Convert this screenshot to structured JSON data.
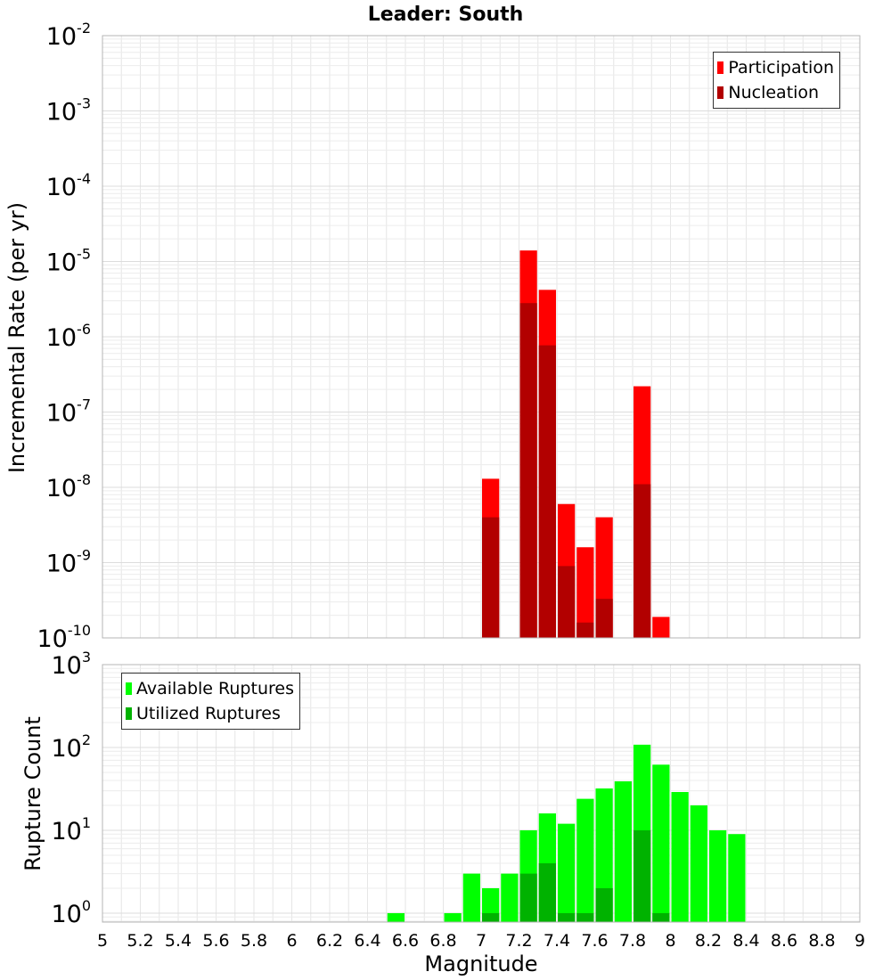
{
  "chart_data": [
    {
      "type": "bar",
      "title": "Leader: South",
      "xlabel": "",
      "ylabel": "Incremental Rate (per yr)",
      "yscale": "log",
      "ylim": [
        1e-10,
        0.01
      ],
      "xlim": [
        5,
        9
      ],
      "grid": true,
      "legend_position": "top-right",
      "bar_width": 0.1,
      "x": [
        7.05,
        7.25,
        7.35,
        7.45,
        7.55,
        7.65,
        7.85,
        7.95
      ],
      "series": [
        {
          "name": "Participation",
          "color": "#ff0000",
          "values": [
            1.3e-08,
            1.4e-05,
            4.2e-06,
            6e-09,
            1.6e-09,
            4e-09,
            2.2e-07,
            1.9e-10
          ]
        },
        {
          "name": "Nucleation",
          "color": "#b20000",
          "values": [
            4e-09,
            2.8e-06,
            7.7e-07,
            9e-10,
            1.6e-10,
            3.3e-10,
            1.1e-08,
            null
          ]
        }
      ],
      "y_ticks": [
        {
          "base": "10",
          "exp": "-2",
          "value": 0.01
        },
        {
          "base": "10",
          "exp": "-3",
          "value": 0.001
        },
        {
          "base": "10",
          "exp": "-4",
          "value": 0.0001
        },
        {
          "base": "10",
          "exp": "-5",
          "value": 1e-05
        },
        {
          "base": "10",
          "exp": "-6",
          "value": 1e-06
        },
        {
          "base": "10",
          "exp": "-7",
          "value": 1e-07
        },
        {
          "base": "10",
          "exp": "-8",
          "value": 1e-08
        },
        {
          "base": "10",
          "exp": "-9",
          "value": 1e-09
        },
        {
          "base": "10",
          "exp": "-10",
          "value": 1e-10
        }
      ]
    },
    {
      "type": "bar",
      "title": "",
      "xlabel": "Magnitude",
      "ylabel": "Rupture Count",
      "yscale": "log",
      "ylim": [
        0.78,
        1000
      ],
      "xlim": [
        5,
        9
      ],
      "grid": true,
      "legend_position": "top-left",
      "bar_width": 0.1,
      "x": [
        6.55,
        6.85,
        6.95,
        7.05,
        7.15,
        7.25,
        7.35,
        7.45,
        7.55,
        7.65,
        7.75,
        7.85,
        7.95,
        8.05,
        8.15,
        8.25,
        8.35
      ],
      "series": [
        {
          "name": "Available Ruptures",
          "color": "#00ff00",
          "values": [
            1,
            1,
            3,
            2,
            3,
            10,
            16,
            12,
            24,
            32,
            39,
            108,
            62,
            29,
            20,
            10,
            9
          ]
        },
        {
          "name": "Utilized Ruptures",
          "color": "#00b200",
          "values": [
            null,
            null,
            null,
            1,
            null,
            3,
            4,
            1,
            1,
            2,
            null,
            10,
            1,
            null,
            null,
            null,
            null
          ]
        }
      ],
      "y_ticks": [
        {
          "base": "10",
          "exp": "3",
          "value": 1000
        },
        {
          "base": "10",
          "exp": "2",
          "value": 100
        },
        {
          "base": "10",
          "exp": "1",
          "value": 10
        },
        {
          "base": "10",
          "exp": "0",
          "value": 1
        }
      ],
      "x_tick_labels": [
        "5",
        "5.2",
        "5.4",
        "5.6",
        "5.8",
        "6",
        "6.2",
        "6.4",
        "6.6",
        "6.8",
        "7",
        "7.2",
        "7.4",
        "7.6",
        "7.8",
        "8",
        "8.2",
        "8.4",
        "8.6",
        "8.8",
        "9"
      ]
    }
  ]
}
